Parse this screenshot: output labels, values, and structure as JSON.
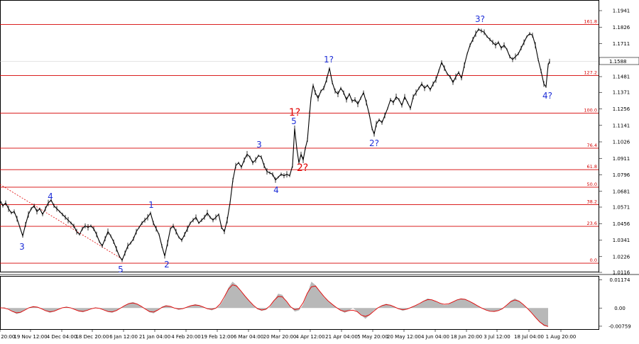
{
  "chart_data": [
    {
      "type": "line",
      "title": "",
      "price_axis_ticks": [
        "1.1941",
        "1.1826",
        "1.1711",
        "1.1588",
        "1.1481",
        "1.1371",
        "1.1256",
        "1.1141",
        "1.1026",
        "1.0911",
        "1.0796",
        "1.0681",
        "1.0571",
        "1.0456",
        "1.0341",
        "1.0226",
        "1.0116"
      ],
      "current_price": "1.1588",
      "x_ticks": [
        "5 Nov 20:00",
        "19 Nov 12:00",
        "4 Dec 04:00",
        "18 Dec 20:00",
        "6 Jan 12:00",
        "21 Jan 04:00",
        "4 Feb 20:00",
        "19 Feb 12:00",
        "6 Mar 04:00",
        "20 Mar 20:00",
        "4 Apr 12:00",
        "21 Apr 04:00",
        "5 May 20:00",
        "20 May 12:00",
        "4 Jun 04:00",
        "18 Jun 20:00",
        "3 Jul 12:00",
        "18 Jul 04:00",
        "1 Aug 20:00"
      ],
      "fibonacci_levels": [
        {
          "label": "161.8",
          "price": 1.1845
        },
        {
          "label": "127.2",
          "price": 1.1488
        },
        {
          "label": "100.0",
          "price": 1.1226
        },
        {
          "label": "76.4",
          "price": 1.0982
        },
        {
          "label": "61.8",
          "price": 1.0832
        },
        {
          "label": "50.0",
          "price": 1.071
        },
        {
          "label": "38.2",
          "price": 1.0588
        },
        {
          "label": "23.6",
          "price": 1.0437
        },
        {
          "label": "0.0",
          "price": 1.018
        }
      ],
      "wave_labels": [
        {
          "text": "3",
          "color": "blue"
        },
        {
          "text": "4",
          "color": "blue"
        },
        {
          "text": "5",
          "color": "blue"
        },
        {
          "text": "1",
          "color": "blue"
        },
        {
          "text": "2",
          "color": "blue"
        },
        {
          "text": "3",
          "color": "blue"
        },
        {
          "text": "4",
          "color": "blue"
        },
        {
          "text": "5",
          "color": "blue"
        },
        {
          "text": "1?",
          "color": "red"
        },
        {
          "text": "2?",
          "color": "red"
        },
        {
          "text": "1?",
          "color": "blue"
        },
        {
          "text": "2?",
          "color": "blue"
        },
        {
          "text": "3?",
          "color": "blue"
        },
        {
          "text": "4?",
          "color": "blue"
        }
      ],
      "price_path": [
        {
          "x": 0,
          "y": 1.062
        },
        {
          "x": 4,
          "y": 1.058
        },
        {
          "x": 8,
          "y": 1.06
        },
        {
          "x": 12,
          "y": 1.056
        },
        {
          "x": 16,
          "y": 1.053
        },
        {
          "x": 20,
          "y": 1.054
        },
        {
          "x": 24,
          "y": 1.049
        },
        {
          "x": 28,
          "y": 1.043
        },
        {
          "x": 32,
          "y": 1.037
        },
        {
          "x": 36,
          "y": 1.045
        },
        {
          "x": 40,
          "y": 1.052
        },
        {
          "x": 44,
          "y": 1.056
        },
        {
          "x": 48,
          "y": 1.058
        },
        {
          "x": 52,
          "y": 1.054
        },
        {
          "x": 56,
          "y": 1.056
        },
        {
          "x": 60,
          "y": 1.052
        },
        {
          "x": 64,
          "y": 1.056
        },
        {
          "x": 68,
          "y": 1.06
        },
        {
          "x": 72,
          "y": 1.062
        },
        {
          "x": 76,
          "y": 1.058
        },
        {
          "x": 80,
          "y": 1.056
        },
        {
          "x": 84,
          "y": 1.054
        },
        {
          "x": 88,
          "y": 1.052
        },
        {
          "x": 92,
          "y": 1.05
        },
        {
          "x": 96,
          "y": 1.048
        },
        {
          "x": 100,
          "y": 1.046
        },
        {
          "x": 104,
          "y": 1.044
        },
        {
          "x": 108,
          "y": 1.04
        },
        {
          "x": 112,
          "y": 1.038
        },
        {
          "x": 116,
          "y": 1.042
        },
        {
          "x": 120,
          "y": 1.044
        },
        {
          "x": 124,
          "y": 1.043
        },
        {
          "x": 128,
          "y": 1.044
        },
        {
          "x": 132,
          "y": 1.042
        },
        {
          "x": 136,
          "y": 1.038
        },
        {
          "x": 140,
          "y": 1.033
        },
        {
          "x": 144,
          "y": 1.03
        },
        {
          "x": 148,
          "y": 1.035
        },
        {
          "x": 152,
          "y": 1.04
        },
        {
          "x": 156,
          "y": 1.037
        },
        {
          "x": 160,
          "y": 1.033
        },
        {
          "x": 164,
          "y": 1.028
        },
        {
          "x": 168,
          "y": 1.023
        },
        {
          "x": 172,
          "y": 1.02
        },
        {
          "x": 176,
          "y": 1.025
        },
        {
          "x": 180,
          "y": 1.03
        },
        {
          "x": 184,
          "y": 1.032
        },
        {
          "x": 188,
          "y": 1.035
        },
        {
          "x": 192,
          "y": 1.04
        },
        {
          "x": 196,
          "y": 1.043
        },
        {
          "x": 200,
          "y": 1.046
        },
        {
          "x": 204,
          "y": 1.048
        },
        {
          "x": 208,
          "y": 1.05
        },
        {
          "x": 212,
          "y": 1.053
        },
        {
          "x": 216,
          "y": 1.046
        },
        {
          "x": 220,
          "y": 1.042
        },
        {
          "x": 224,
          "y": 1.038
        },
        {
          "x": 228,
          "y": 1.03
        },
        {
          "x": 232,
          "y": 1.023
        },
        {
          "x": 236,
          "y": 1.032
        },
        {
          "x": 240,
          "y": 1.042
        },
        {
          "x": 244,
          "y": 1.044
        },
        {
          "x": 248,
          "y": 1.04
        },
        {
          "x": 252,
          "y": 1.036
        },
        {
          "x": 256,
          "y": 1.034
        },
        {
          "x": 260,
          "y": 1.038
        },
        {
          "x": 264,
          "y": 1.042
        },
        {
          "x": 268,
          "y": 1.046
        },
        {
          "x": 272,
          "y": 1.048
        },
        {
          "x": 276,
          "y": 1.05
        },
        {
          "x": 280,
          "y": 1.046
        },
        {
          "x": 284,
          "y": 1.048
        },
        {
          "x": 288,
          "y": 1.05
        },
        {
          "x": 292,
          "y": 1.053
        },
        {
          "x": 296,
          "y": 1.05
        },
        {
          "x": 300,
          "y": 1.048
        },
        {
          "x": 304,
          "y": 1.05
        },
        {
          "x": 308,
          "y": 1.052
        },
        {
          "x": 312,
          "y": 1.043
        },
        {
          "x": 316,
          "y": 1.04
        },
        {
          "x": 320,
          "y": 1.048
        },
        {
          "x": 324,
          "y": 1.06
        },
        {
          "x": 328,
          "y": 1.076
        },
        {
          "x": 332,
          "y": 1.086
        },
        {
          "x": 336,
          "y": 1.088
        },
        {
          "x": 340,
          "y": 1.085
        },
        {
          "x": 344,
          "y": 1.09
        },
        {
          "x": 348,
          "y": 1.094
        },
        {
          "x": 352,
          "y": 1.092
        },
        {
          "x": 356,
          "y": 1.088
        },
        {
          "x": 360,
          "y": 1.09
        },
        {
          "x": 364,
          "y": 1.093
        },
        {
          "x": 368,
          "y": 1.092
        },
        {
          "x": 372,
          "y": 1.086
        },
        {
          "x": 376,
          "y": 1.082
        },
        {
          "x": 380,
          "y": 1.081
        },
        {
          "x": 384,
          "y": 1.08
        },
        {
          "x": 388,
          "y": 1.076
        },
        {
          "x": 392,
          "y": 1.078
        },
        {
          "x": 396,
          "y": 1.08
        },
        {
          "x": 400,
          "y": 1.079
        },
        {
          "x": 404,
          "y": 1.08
        },
        {
          "x": 408,
          "y": 1.079
        },
        {
          "x": 412,
          "y": 1.086
        },
        {
          "x": 415,
          "y": 1.112
        },
        {
          "x": 418,
          "y": 1.098
        },
        {
          "x": 421,
          "y": 1.088
        },
        {
          "x": 424,
          "y": 1.094
        },
        {
          "x": 427,
          "y": 1.09
        },
        {
          "x": 430,
          "y": 1.098
        },
        {
          "x": 433,
          "y": 1.104
        },
        {
          "x": 436,
          "y": 1.122
        },
        {
          "x": 438,
          "y": 1.133
        },
        {
          "x": 441,
          "y": 1.142
        },
        {
          "x": 444,
          "y": 1.137
        },
        {
          "x": 448,
          "y": 1.133
        },
        {
          "x": 452,
          "y": 1.138
        },
        {
          "x": 456,
          "y": 1.14
        },
        {
          "x": 460,
          "y": 1.146
        },
        {
          "x": 464,
          "y": 1.154
        },
        {
          "x": 468,
          "y": 1.144
        },
        {
          "x": 472,
          "y": 1.138
        },
        {
          "x": 476,
          "y": 1.136
        },
        {
          "x": 480,
          "y": 1.14
        },
        {
          "x": 484,
          "y": 1.137
        },
        {
          "x": 488,
          "y": 1.132
        },
        {
          "x": 492,
          "y": 1.136
        },
        {
          "x": 496,
          "y": 1.131
        },
        {
          "x": 500,
          "y": 1.132
        },
        {
          "x": 504,
          "y": 1.129
        },
        {
          "x": 508,
          "y": 1.133
        },
        {
          "x": 512,
          "y": 1.137
        },
        {
          "x": 516,
          "y": 1.13
        },
        {
          "x": 520,
          "y": 1.122
        },
        {
          "x": 524,
          "y": 1.112
        },
        {
          "x": 527,
          "y": 1.108
        },
        {
          "x": 530,
          "y": 1.115
        },
        {
          "x": 534,
          "y": 1.118
        },
        {
          "x": 538,
          "y": 1.116
        },
        {
          "x": 542,
          "y": 1.121
        },
        {
          "x": 546,
          "y": 1.126
        },
        {
          "x": 550,
          "y": 1.132
        },
        {
          "x": 554,
          "y": 1.13
        },
        {
          "x": 558,
          "y": 1.134
        },
        {
          "x": 562,
          "y": 1.132
        },
        {
          "x": 566,
          "y": 1.128
        },
        {
          "x": 570,
          "y": 1.134
        },
        {
          "x": 574,
          "y": 1.13
        },
        {
          "x": 578,
          "y": 1.126
        },
        {
          "x": 582,
          "y": 1.134
        },
        {
          "x": 586,
          "y": 1.137
        },
        {
          "x": 590,
          "y": 1.14
        },
        {
          "x": 594,
          "y": 1.143
        },
        {
          "x": 598,
          "y": 1.14
        },
        {
          "x": 602,
          "y": 1.142
        },
        {
          "x": 606,
          "y": 1.139
        },
        {
          "x": 610,
          "y": 1.143
        },
        {
          "x": 614,
          "y": 1.146
        },
        {
          "x": 618,
          "y": 1.152
        },
        {
          "x": 622,
          "y": 1.158
        },
        {
          "x": 626,
          "y": 1.154
        },
        {
          "x": 630,
          "y": 1.15
        },
        {
          "x": 634,
          "y": 1.148
        },
        {
          "x": 638,
          "y": 1.144
        },
        {
          "x": 642,
          "y": 1.148
        },
        {
          "x": 646,
          "y": 1.151
        },
        {
          "x": 650,
          "y": 1.147
        },
        {
          "x": 654,
          "y": 1.156
        },
        {
          "x": 658,
          "y": 1.164
        },
        {
          "x": 662,
          "y": 1.17
        },
        {
          "x": 666,
          "y": 1.174
        },
        {
          "x": 670,
          "y": 1.178
        },
        {
          "x": 674,
          "y": 1.181
        },
        {
          "x": 678,
          "y": 1.18
        },
        {
          "x": 682,
          "y": 1.179
        },
        {
          "x": 686,
          "y": 1.176
        },
        {
          "x": 690,
          "y": 1.174
        },
        {
          "x": 694,
          "y": 1.172
        },
        {
          "x": 698,
          "y": 1.17
        },
        {
          "x": 702,
          "y": 1.172
        },
        {
          "x": 706,
          "y": 1.168
        },
        {
          "x": 710,
          "y": 1.17
        },
        {
          "x": 714,
          "y": 1.167
        },
        {
          "x": 718,
          "y": 1.162
        },
        {
          "x": 722,
          "y": 1.16
        },
        {
          "x": 726,
          "y": 1.162
        },
        {
          "x": 730,
          "y": 1.164
        },
        {
          "x": 734,
          "y": 1.168
        },
        {
          "x": 738,
          "y": 1.172
        },
        {
          "x": 742,
          "y": 1.176
        },
        {
          "x": 746,
          "y": 1.178
        },
        {
          "x": 750,
          "y": 1.177
        },
        {
          "x": 754,
          "y": 1.17
        },
        {
          "x": 758,
          "y": 1.16
        },
        {
          "x": 762,
          "y": 1.152
        },
        {
          "x": 766,
          "y": 1.143
        },
        {
          "x": 769,
          "y": 1.141
        },
        {
          "x": 772,
          "y": 1.156
        },
        {
          "x": 774,
          "y": 1.1588
        }
      ],
      "oscillator": {
        "ticks": [
          "0.01174",
          "0.00",
          "-0.00759"
        ],
        "ymin": -0.0085,
        "ymax": 0.0125,
        "values": [
          0.0,
          0.0003,
          -0.0003,
          -0.0015,
          -0.0025,
          -0.002,
          -0.0008,
          0.0003,
          0.0008,
          0.0005,
          -0.0002,
          -0.0012,
          -0.002,
          -0.0015,
          -0.0005,
          0.0002,
          0.0006,
          0.0002,
          -0.0006,
          -0.0014,
          -0.0018,
          -0.001,
          -0.0002,
          0.0003,
          0.0,
          -0.0008,
          -0.0016,
          -0.002,
          -0.0012,
          0.0,
          0.001,
          0.002,
          0.0025,
          0.0018,
          0.0008,
          -0.0004,
          -0.0018,
          -0.0022,
          -0.001,
          0.0006,
          0.0012,
          0.0008,
          0.0,
          -0.0008,
          -0.0004,
          0.0004,
          0.001,
          0.0016,
          0.0012,
          0.0004,
          -0.0004,
          -0.001,
          -0.0002,
          0.0012,
          0.004,
          0.0085,
          0.011,
          0.0095,
          0.007,
          0.005,
          0.003,
          0.001,
          -0.0005,
          -0.0012,
          -0.0008,
          0.0005,
          0.003,
          0.006,
          0.0055,
          0.0025,
          0.0005,
          -0.0015,
          -0.001,
          0.0015,
          0.006,
          0.011,
          0.0095,
          0.007,
          0.0045,
          0.003,
          0.0015,
          0.0002,
          -0.001,
          -0.002,
          -0.0012,
          0.0,
          -0.0015,
          -0.003,
          -0.0045,
          -0.003,
          -0.001,
          0.0,
          0.0012,
          0.0018,
          0.0012,
          0.0006,
          -0.0004,
          -0.0012,
          -0.0006,
          0.0004,
          0.001,
          0.0016,
          0.003,
          0.004,
          0.0035,
          0.0028,
          0.002,
          0.0012,
          0.0015,
          0.0025,
          0.0035,
          0.004,
          0.0038,
          0.003,
          0.0018,
          0.001,
          0.0,
          -0.001,
          -0.0014,
          -0.0016,
          -0.0012,
          -0.0005,
          0.001,
          0.003,
          0.004,
          0.003,
          0.0015,
          0.0,
          -0.002,
          -0.004,
          -0.006,
          -0.0075,
          -0.0078
        ]
      }
    }
  ]
}
